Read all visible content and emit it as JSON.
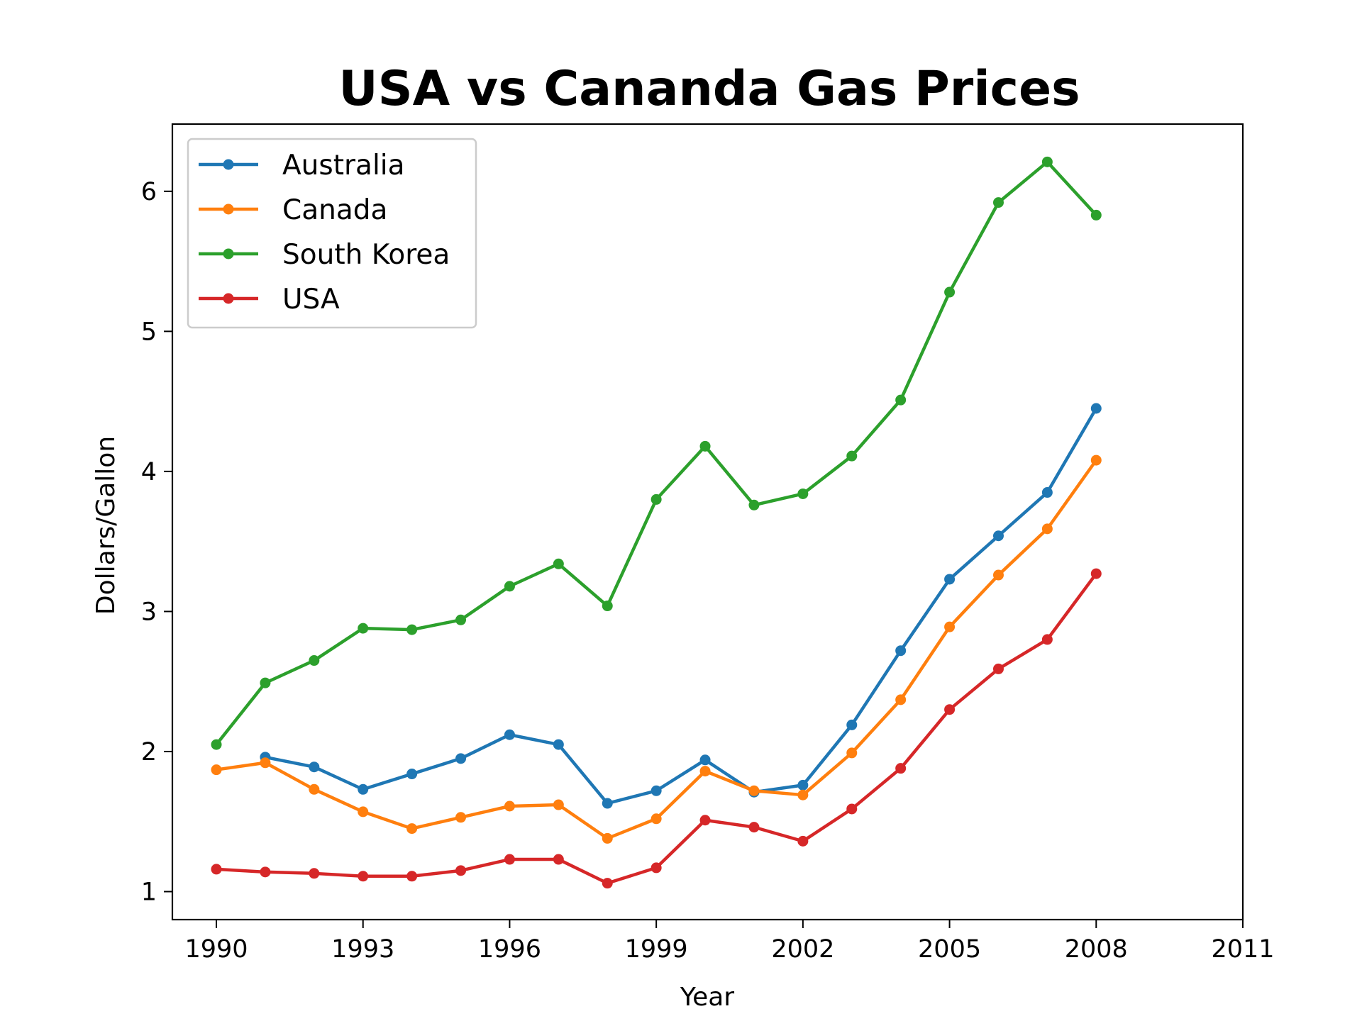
{
  "chart_data": {
    "type": "line",
    "title": "USA vs Cananda Gas Prices",
    "xlabel": "Year",
    "ylabel": "Dollars/Gallon",
    "xlim": [
      1989.1,
      2011
    ],
    "ylim": [
      0.8,
      6.48
    ],
    "xticks": [
      1990,
      1993,
      1996,
      1999,
      2002,
      2005,
      2008,
      2011
    ],
    "yticks": [
      1,
      2,
      3,
      4,
      5,
      6
    ],
    "grid": false,
    "legend_position": "top-left",
    "series": [
      {
        "name": "Australia",
        "color": "#1f77b4",
        "x": [
          1991,
          1992,
          1993,
          1994,
          1995,
          1996,
          1997,
          1998,
          1999,
          2000,
          2001,
          2002,
          2003,
          2004,
          2005,
          2006,
          2007,
          2008
        ],
        "values": [
          1.96,
          1.89,
          1.73,
          1.84,
          1.95,
          2.12,
          2.05,
          1.63,
          1.72,
          1.94,
          1.71,
          1.76,
          2.19,
          2.72,
          3.23,
          3.54,
          3.85,
          4.45
        ]
      },
      {
        "name": "Canada",
        "color": "#ff7f0e",
        "x": [
          1990,
          1991,
          1992,
          1993,
          1994,
          1995,
          1996,
          1997,
          1998,
          1999,
          2000,
          2001,
          2002,
          2003,
          2004,
          2005,
          2006,
          2007,
          2008
        ],
        "values": [
          1.87,
          1.92,
          1.73,
          1.57,
          1.45,
          1.53,
          1.61,
          1.62,
          1.38,
          1.52,
          1.86,
          1.72,
          1.69,
          1.99,
          2.37,
          2.89,
          3.26,
          3.59,
          4.08
        ]
      },
      {
        "name": "South Korea",
        "color": "#2ca02c",
        "x": [
          1990,
          1991,
          1992,
          1993,
          1994,
          1995,
          1996,
          1997,
          1998,
          1999,
          2000,
          2001,
          2002,
          2003,
          2004,
          2005,
          2006,
          2007,
          2008
        ],
        "values": [
          2.05,
          2.49,
          2.65,
          2.88,
          2.87,
          2.94,
          3.18,
          3.34,
          3.04,
          3.8,
          4.18,
          3.76,
          3.84,
          4.11,
          4.51,
          5.28,
          5.92,
          6.21,
          5.83
        ]
      },
      {
        "name": "USA",
        "color": "#d62728",
        "x": [
          1990,
          1991,
          1992,
          1993,
          1994,
          1995,
          1996,
          1997,
          1998,
          1999,
          2000,
          2001,
          2002,
          2003,
          2004,
          2005,
          2006,
          2007,
          2008
        ],
        "values": [
          1.16,
          1.14,
          1.13,
          1.11,
          1.11,
          1.15,
          1.23,
          1.23,
          1.06,
          1.17,
          1.51,
          1.46,
          1.36,
          1.59,
          1.88,
          2.3,
          2.59,
          2.8,
          3.27
        ]
      }
    ]
  }
}
